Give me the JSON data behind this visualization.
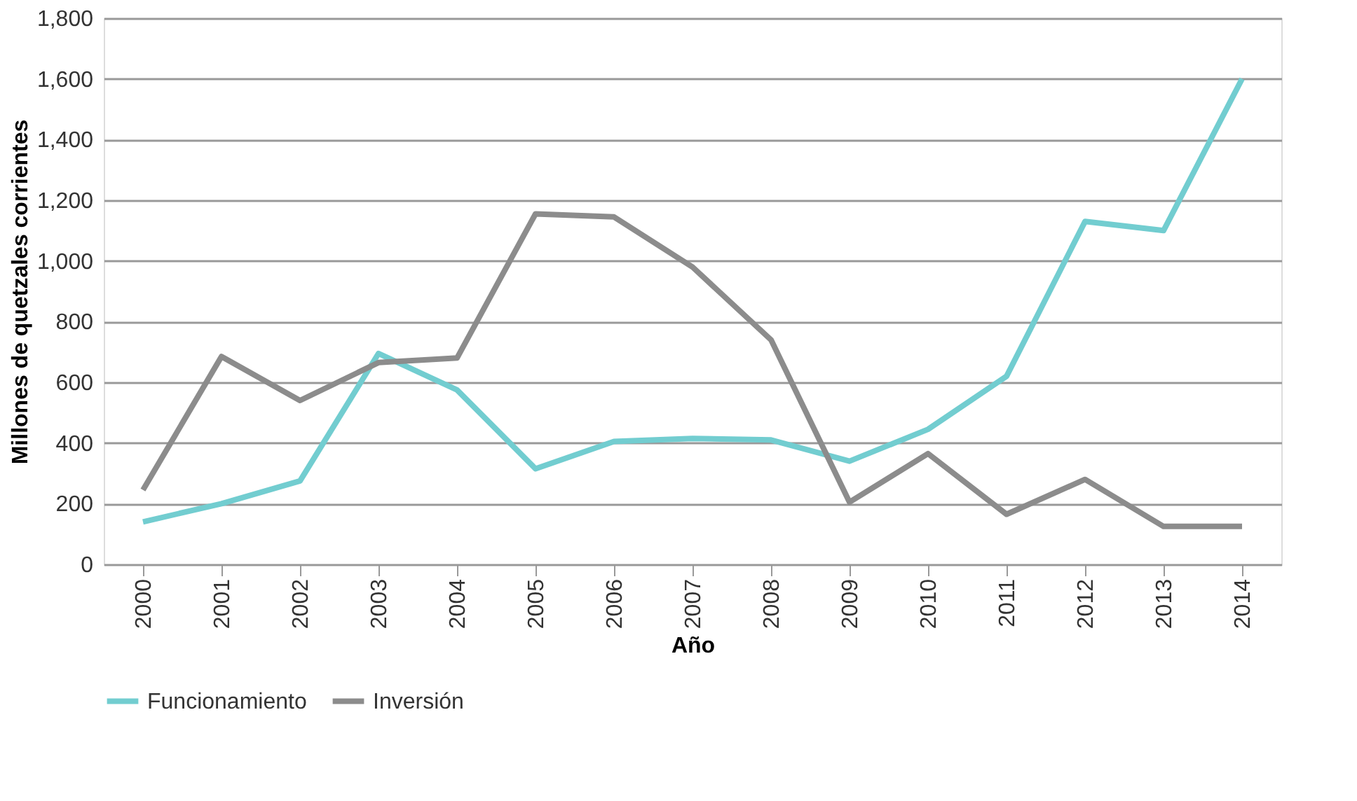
{
  "chart_data": {
    "type": "line",
    "xlabel": "Año",
    "ylabel": "Millones de quetzales corrientes",
    "categories": [
      "2000",
      "2001",
      "2002",
      "2003",
      "2004",
      "2005",
      "2006",
      "2007",
      "2008",
      "2009",
      "2010",
      "2011",
      "2012",
      "2013",
      "2014"
    ],
    "series": [
      {
        "name": "Funcionamiento",
        "color": "#72cdd0",
        "values": [
          140,
          200,
          275,
          695,
          575,
          315,
          405,
          415,
          410,
          340,
          445,
          620,
          1130,
          1100,
          1600
        ]
      },
      {
        "name": "Inversión",
        "color": "#8c8c8c",
        "values": [
          245,
          685,
          540,
          665,
          680,
          1155,
          1145,
          980,
          740,
          205,
          365,
          165,
          280,
          125,
          125
        ]
      }
    ],
    "ylim": [
      0,
      1800
    ],
    "yticks": [
      0,
      200,
      400,
      600,
      800,
      {
        "value": 1000,
        "label": "1,000"
      },
      {
        "value": 1200,
        "label": "1,200"
      },
      {
        "value": 1400,
        "label": "1,400"
      },
      {
        "value": 1600,
        "label": "1,600"
      },
      {
        "value": 1800,
        "label": "1,800"
      }
    ],
    "grid": "y",
    "legend": "bottom",
    "marker": "none",
    "line_style": "solid"
  }
}
